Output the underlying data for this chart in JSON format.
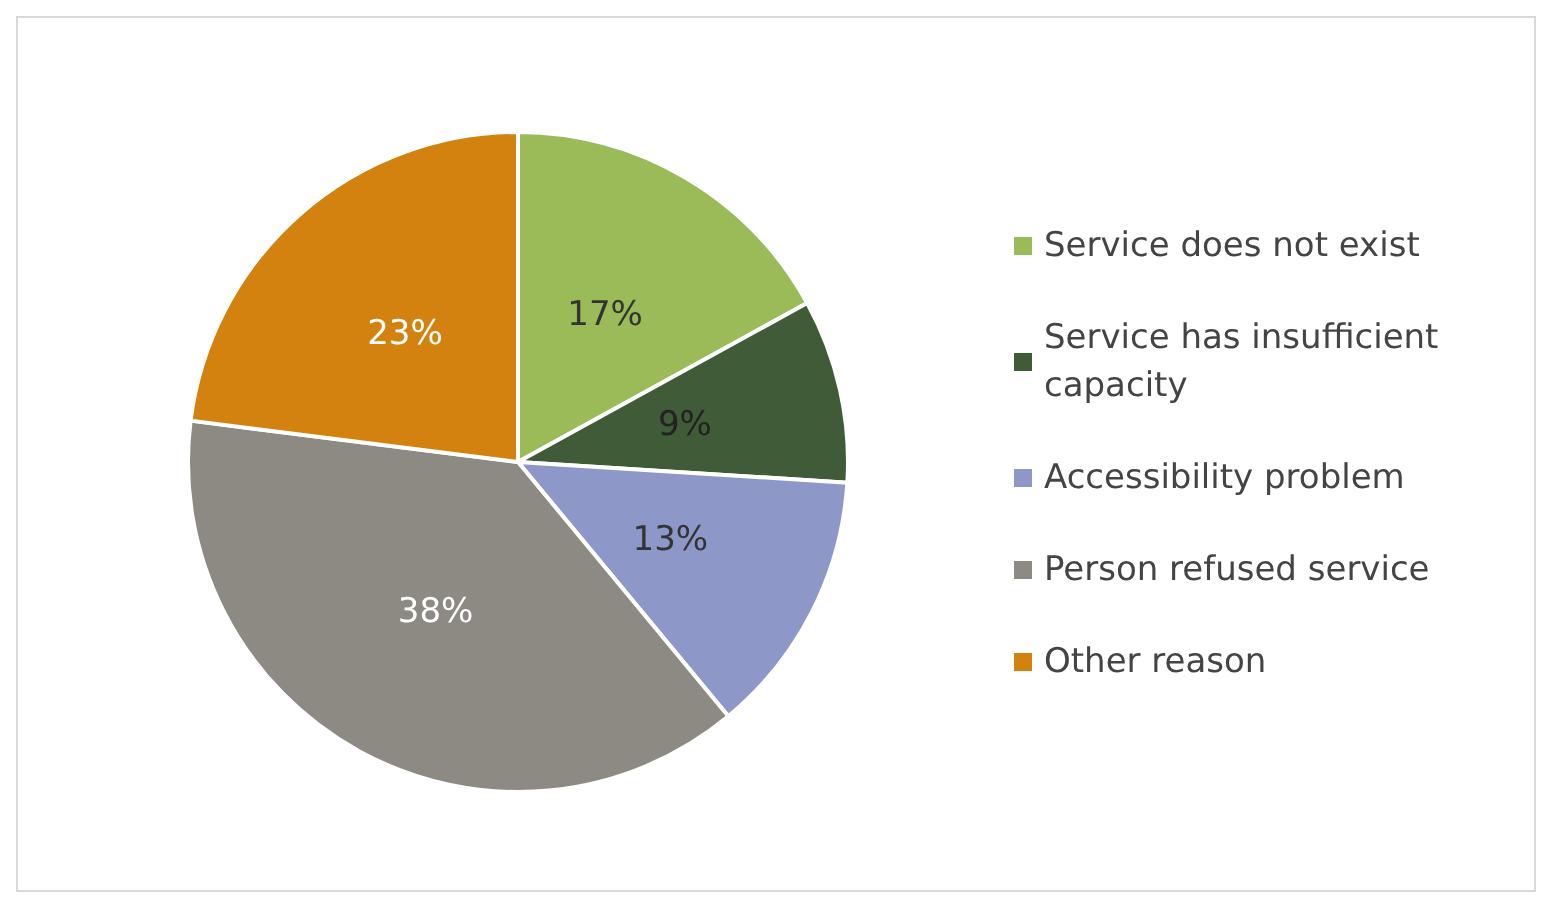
{
  "chart_data": {
    "type": "pie",
    "categories": [
      "Service does not exist",
      "Service has insufficient capacity",
      "Accessibility problem",
      "Person refused service",
      "Other reason"
    ],
    "values": [
      17,
      9,
      13,
      38,
      23
    ],
    "colors": [
      "#9bbb59",
      "#3f5b37",
      "#8d98c9",
      "#8c8a82",
      "#d4820f"
    ],
    "value_labels": [
      "17%",
      "9%",
      "13%",
      "38%",
      "23%"
    ],
    "legend": "right"
  }
}
